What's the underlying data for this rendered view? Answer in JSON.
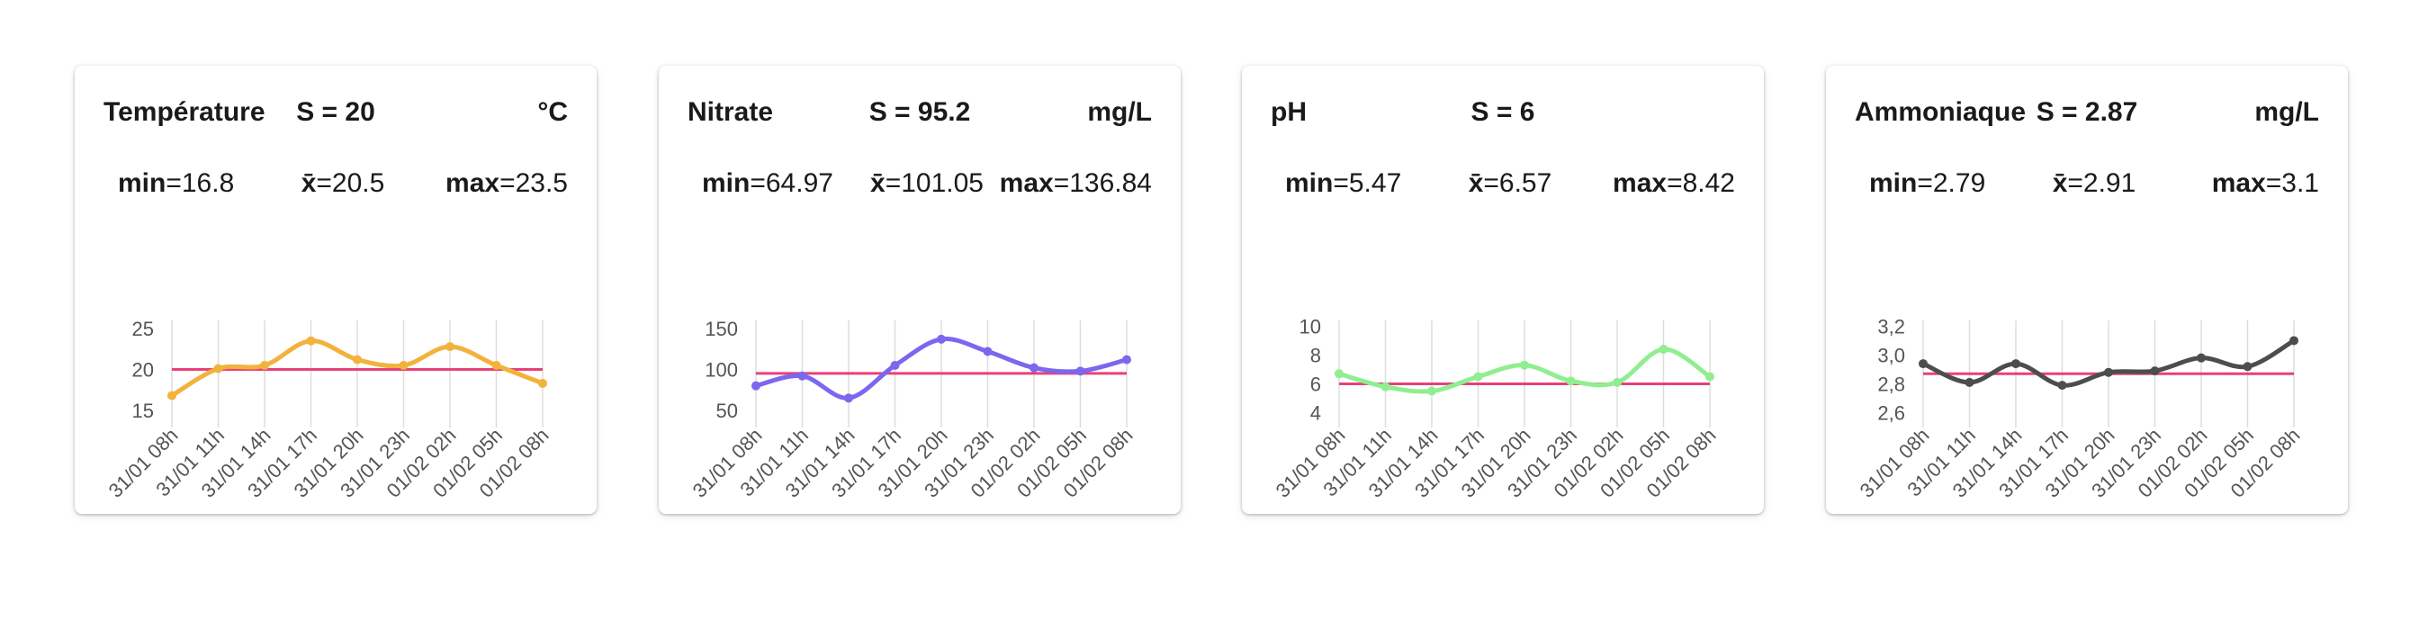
{
  "colors": {
    "reference_line": "#e8417a",
    "grid": "#dddddd",
    "axis_text": "#555555"
  },
  "cards": [
    {
      "title": "Température",
      "s_label": "S = 20",
      "unit": "°C",
      "stats": {
        "min_label": "min",
        "min_value": "=16.8",
        "mean_label": "x̄",
        "mean_value": "=20.5",
        "max_label": "max",
        "max_value": "=23.5"
      }
    },
    {
      "title": "Nitrate",
      "s_label": "S = 95.2",
      "unit": "mg/L",
      "stats": {
        "min_label": "min",
        "min_value": "=64.97",
        "mean_label": "x̄",
        "mean_value": "=101.05",
        "max_label": "max",
        "max_value": "=136.84"
      }
    },
    {
      "title": "pH",
      "s_label": "S = 6",
      "unit": "",
      "stats": {
        "min_label": "min",
        "min_value": "=5.47",
        "mean_label": "x̄",
        "mean_value": "=6.57",
        "max_label": "max",
        "max_value": "=8.42"
      }
    },
    {
      "title": "Ammoniaque",
      "s_label": "S = 2.87",
      "unit": "mg/L",
      "stats": {
        "min_label": "min",
        "min_value": "=2.79",
        "mean_label": "x̄",
        "mean_value": "=2.91",
        "max_label": "max",
        "max_value": "=3.1"
      }
    }
  ],
  "chart_data": [
    {
      "type": "line",
      "title": "Température",
      "color": "#f2b23c",
      "x": [
        "31/01 08h",
        "31/01 11h",
        "31/01 14h",
        "31/01 17h",
        "31/01 20h",
        "31/01 23h",
        "01/02 02h",
        "01/02 05h",
        "01/02 08h"
      ],
      "values": [
        16.8,
        20.1,
        20.5,
        23.5,
        21.2,
        20.5,
        22.8,
        20.5,
        18.3
      ],
      "threshold": 20,
      "ylim": [
        14,
        26
      ],
      "yticks": [
        15,
        20,
        25
      ],
      "ytick_labels": [
        "15",
        "20",
        "25"
      ],
      "grid": true
    },
    {
      "type": "line",
      "title": "Nitrate",
      "color": "#7b68ee",
      "x": [
        "31/01 08h",
        "31/01 11h",
        "31/01 14h",
        "31/01 17h",
        "31/01 20h",
        "31/01 23h",
        "01/02 02h",
        "01/02 05h",
        "01/02 08h"
      ],
      "values": [
        80,
        92,
        65,
        105,
        137,
        122,
        102,
        98,
        112
      ],
      "threshold": 95.2,
      "ylim": [
        40,
        160
      ],
      "yticks": [
        50,
        100,
        150
      ],
      "ytick_labels": [
        "50",
        "100",
        "150"
      ],
      "grid": true
    },
    {
      "type": "line",
      "title": "pH",
      "color": "#90ee90",
      "x": [
        "31/01 08h",
        "31/01 11h",
        "31/01 14h",
        "31/01 17h",
        "31/01 20h",
        "31/01 23h",
        "01/02 02h",
        "01/02 05h",
        "01/02 08h"
      ],
      "values": [
        6.7,
        5.8,
        5.5,
        6.5,
        7.3,
        6.2,
        6.1,
        8.4,
        6.5
      ],
      "threshold": 6,
      "ylim": [
        3.6,
        10.4
      ],
      "yticks": [
        4,
        6,
        8,
        10
      ],
      "ytick_labels": [
        "4",
        "6",
        "8",
        "10"
      ],
      "grid": true
    },
    {
      "type": "line",
      "title": "Ammoniaque",
      "color": "#4d4d4d",
      "x": [
        "31/01 08h",
        "31/01 11h",
        "31/01 14h",
        "31/01 17h",
        "31/01 20h",
        "31/01 23h",
        "01/02 02h",
        "01/02 05h",
        "01/02 08h"
      ],
      "values": [
        2.94,
        2.81,
        2.94,
        2.79,
        2.88,
        2.89,
        2.98,
        2.92,
        3.1
      ],
      "threshold": 2.87,
      "ylim": [
        2.56,
        3.24
      ],
      "yticks": [
        2.6,
        2.8,
        3.0,
        3.2
      ],
      "ytick_labels": [
        "2,6",
        "2,8",
        "3,0",
        "3,2"
      ],
      "grid": true
    }
  ]
}
